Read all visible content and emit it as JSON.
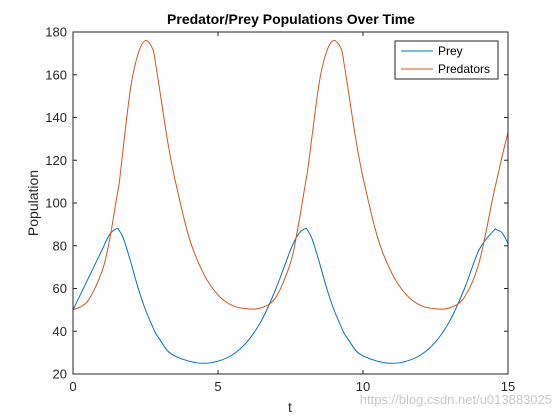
{
  "chart_data": {
    "type": "line",
    "title": "Predator/Prey Populations Over Time",
    "xlabel": "t",
    "ylabel": "Population",
    "xlim": [
      0,
      15
    ],
    "ylim": [
      20,
      180
    ],
    "xticks": [
      0,
      5,
      10,
      15
    ],
    "yticks": [
      20,
      40,
      60,
      80,
      100,
      120,
      140,
      160,
      180
    ],
    "grid": false,
    "legend_position": "top-right",
    "x": [
      0,
      0.5,
      1,
      1.25,
      1.5,
      1.6,
      1.75,
      2,
      2.25,
      2.5,
      2.75,
      2.85,
      3,
      3.25,
      3.5,
      4,
      4.5,
      5,
      5.5,
      6,
      6.5,
      7,
      7.5,
      7.75,
      8,
      8.1,
      8.25,
      8.5,
      8.75,
      9,
      9.25,
      9.35,
      9.5,
      9.75,
      10,
      10.5,
      11,
      11.5,
      12,
      12.5,
      13,
      13.5,
      14,
      14.5,
      14.6,
      14.8,
      15
    ],
    "series": [
      {
        "name": "Prey",
        "color": "#0072BD",
        "values": [
          50,
          64,
          78,
          85,
          88,
          87,
          83,
          72,
          60,
          50,
          42,
          39,
          36,
          31,
          28.5,
          26,
          25,
          26,
          29,
          35,
          45,
          60,
          78,
          85,
          88,
          87,
          83,
          72,
          60,
          50,
          42,
          39,
          36,
          31,
          28.5,
          26,
          25,
          26,
          29,
          35,
          45,
          60,
          78,
          87,
          87.5,
          86,
          81
        ]
      },
      {
        "name": "Predators",
        "color": "#D95319",
        "values": [
          50,
          54,
          68,
          82,
          102,
          110,
          128,
          155,
          170,
          176,
          172,
          165,
          152,
          130,
          112,
          84,
          67,
          57,
          52,
          50.5,
          51,
          56,
          72,
          88,
          108,
          116,
          132,
          157,
          171,
          176,
          172,
          165,
          152,
          130,
          112,
          84,
          67,
          57,
          52,
          50.5,
          51,
          56,
          72,
          104,
          110,
          122,
          133
        ]
      }
    ]
  },
  "watermark": "https://blog.csdn.net/u013883025"
}
